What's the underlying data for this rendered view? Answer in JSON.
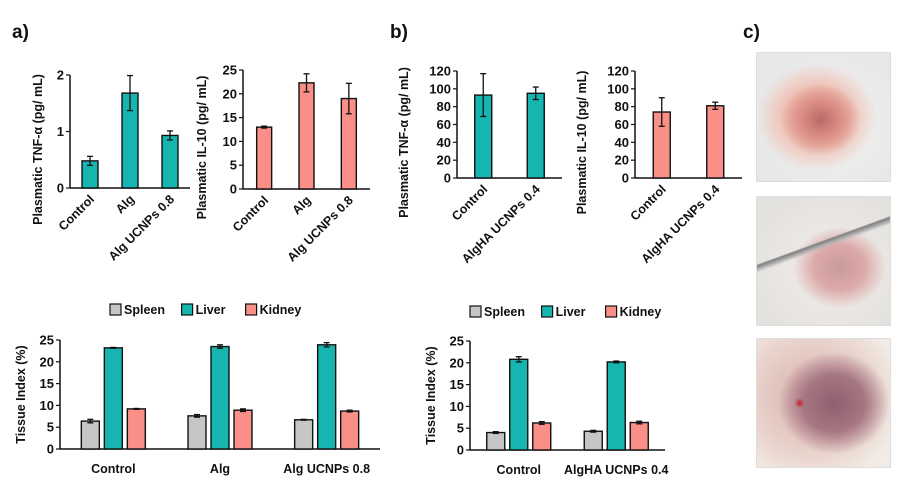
{
  "panels": {
    "a": "a)",
    "b": "b)",
    "c": "c)"
  },
  "colors": {
    "teal": "#17b5b0",
    "salmon": "#f98f86",
    "gray": "#c6c6c6",
    "axis": "#111111"
  },
  "photos": [
    {
      "name": "wound-photo-1",
      "description": "Reddish wound tissue on white fur"
    },
    {
      "name": "wound-photo-2",
      "description": "Pink tissue held with tweezers"
    },
    {
      "name": "wound-photo-3",
      "description": "Dark purple-pink tissue in cavity"
    }
  ],
  "chart_data": [
    {
      "id": "a-tnf",
      "type": "bar",
      "panel": "a",
      "title": "",
      "xlabel": "",
      "ylabel": "Plasmatic TNF-α  (pg/ mL)",
      "categories": [
        "Control",
        "Alg",
        "Alg UCNPs 0.8"
      ],
      "values": [
        0.48,
        1.68,
        0.93
      ],
      "errors": [
        0.08,
        0.31,
        0.08
      ],
      "ylim": [
        0,
        2
      ],
      "yticks": [
        0,
        1,
        2
      ],
      "color": "#17b5b0",
      "grid": false
    },
    {
      "id": "a-il10",
      "type": "bar",
      "panel": "a",
      "title": "",
      "xlabel": "",
      "ylabel": "Plasmatic IL-10 (pg/ mL)",
      "categories": [
        "Control",
        "Alg",
        "Alg UCNPs 0.8"
      ],
      "values": [
        13.0,
        22.3,
        19.0
      ],
      "errors": [
        0.2,
        1.9,
        3.2
      ],
      "ylim": [
        0,
        25
      ],
      "yticks": [
        0,
        5,
        10,
        15,
        20,
        25
      ],
      "color": "#f98f86",
      "grid": false
    },
    {
      "id": "b-tnf",
      "type": "bar",
      "panel": "b",
      "title": "",
      "xlabel": "",
      "ylabel": "Plasmatic TNF-α (pg/ mL)",
      "categories": [
        "Control",
        "AlgHA UCNPs 0.4"
      ],
      "values": [
        93,
        95
      ],
      "errors": [
        24,
        7
      ],
      "ylim": [
        0,
        120
      ],
      "yticks": [
        0,
        20,
        40,
        60,
        80,
        100,
        120
      ],
      "color": "#17b5b0",
      "grid": false
    },
    {
      "id": "b-il10",
      "type": "bar",
      "panel": "b",
      "title": "",
      "xlabel": "",
      "ylabel": "Plasmatic IL-10 (pg/ mL)",
      "categories": [
        "Control",
        "AlgHA UCNPs 0.4"
      ],
      "values": [
        74,
        81
      ],
      "errors": [
        16,
        4
      ],
      "ylim": [
        0,
        120
      ],
      "yticks": [
        0,
        20,
        40,
        60,
        80,
        100,
        120
      ],
      "color": "#f98f86",
      "grid": false
    },
    {
      "id": "a-tissue",
      "type": "bar",
      "panel": "a",
      "title": "",
      "xlabel": "",
      "ylabel": "Tissue Index (%)",
      "categories": [
        "Control",
        "Alg",
        "Alg UCNPs 0.8"
      ],
      "series": [
        {
          "name": "Spleen",
          "color": "#c6c6c6",
          "values": [
            6.4,
            7.6,
            6.7
          ],
          "errors": [
            0.4,
            0.3,
            0.1
          ]
        },
        {
          "name": "Liver",
          "color": "#17b5b0",
          "values": [
            23.2,
            23.5,
            23.9
          ],
          "errors": [
            0.1,
            0.4,
            0.5
          ]
        },
        {
          "name": "Kidney",
          "color": "#f98f86",
          "values": [
            9.2,
            8.9,
            8.7
          ],
          "errors": [
            0.1,
            0.3,
            0.2
          ]
        }
      ],
      "ylim": [
        0,
        25
      ],
      "yticks": [
        0,
        5,
        10,
        15,
        20,
        25
      ],
      "legend": "top",
      "grid": false
    },
    {
      "id": "b-tissue",
      "type": "bar",
      "panel": "b",
      "title": "",
      "xlabel": "",
      "ylabel": "Tissue Index (%)",
      "categories": [
        "Control",
        "AlgHA UCNPs 0.4"
      ],
      "series": [
        {
          "name": "Spleen",
          "color": "#c6c6c6",
          "values": [
            4.0,
            4.3
          ],
          "errors": [
            0.2,
            0.2
          ]
        },
        {
          "name": "Liver",
          "color": "#17b5b0",
          "values": [
            20.8,
            20.2
          ],
          "errors": [
            0.6,
            0.2
          ]
        },
        {
          "name": "Kidney",
          "color": "#f98f86",
          "values": [
            6.2,
            6.3
          ],
          "errors": [
            0.3,
            0.3
          ]
        }
      ],
      "ylim": [
        0,
        25
      ],
      "yticks": [
        0,
        5,
        10,
        15,
        20,
        25
      ],
      "legend": "top",
      "grid": false
    }
  ]
}
